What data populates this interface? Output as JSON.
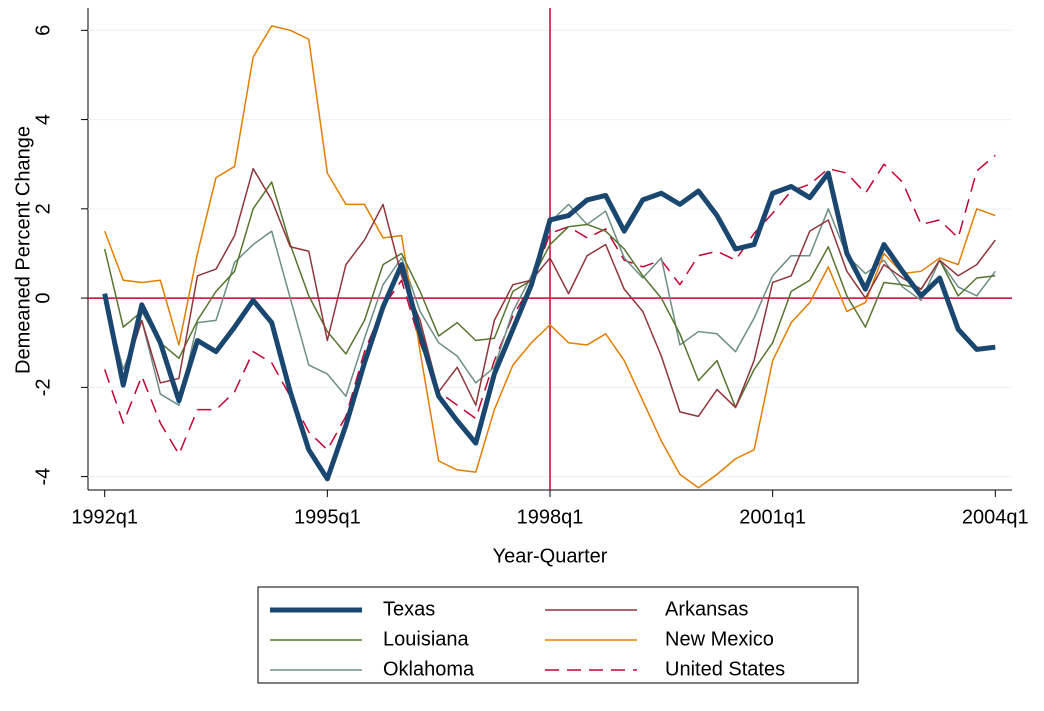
{
  "chart_data": {
    "type": "line",
    "x_label": "Year-Quarter",
    "y_label": "Demeaned Percent Change",
    "x": [
      128,
      129,
      130,
      131,
      132,
      133,
      134,
      135,
      136,
      137,
      138,
      139,
      140,
      141,
      142,
      143,
      144,
      145,
      146,
      147,
      148,
      149,
      150,
      151,
      152,
      153,
      154,
      155,
      156,
      157,
      158,
      159,
      160,
      161,
      162,
      163,
      164,
      165,
      166,
      167,
      168,
      169,
      170,
      171,
      172,
      173,
      174,
      175,
      176
    ],
    "xlim": [
      127.1,
      176.9
    ],
    "xticks": [
      {
        "value": 128,
        "label": "1992q1"
      },
      {
        "value": 140,
        "label": "1995q1"
      },
      {
        "value": 152,
        "label": "1998q1"
      },
      {
        "value": 164,
        "label": "2001q1"
      },
      {
        "value": 176,
        "label": "2004q1"
      }
    ],
    "ylim": [
      -4.3,
      6.5
    ],
    "yticks": [
      -4,
      -2,
      0,
      2,
      4,
      6
    ],
    "xline": 152,
    "yline": 0,
    "refline_color": "#c10534",
    "series": [
      {
        "name": "Texas",
        "color": "#1a476f",
        "line_width": 5,
        "dashed": false,
        "values": [
          0.1,
          -1.95,
          -0.15,
          -1.0,
          -2.3,
          -0.95,
          -1.2,
          -0.65,
          -0.05,
          -0.55,
          -2.1,
          -3.4,
          -4.05,
          -2.85,
          -1.45,
          -0.2,
          0.75,
          -0.8,
          -2.2,
          -2.75,
          -3.25,
          -1.7,
          -0.7,
          0.3,
          1.75,
          1.85,
          2.2,
          2.3,
          1.5,
          2.2,
          2.35,
          2.1,
          2.4,
          1.85,
          1.1,
          1.2,
          2.35,
          2.5,
          2.25,
          2.8,
          1.0,
          0.2,
          1.2,
          0.6,
          0.05,
          0.45,
          -0.7,
          -1.15,
          -1.1
        ]
      },
      {
        "name": "Arkansas",
        "color": "#90353b",
        "line_width": 1.5,
        "dashed": false,
        "values": [
          0,
          -1.8,
          -0.5,
          -1.9,
          -1.8,
          0.5,
          0.65,
          1.4,
          2.9,
          2.2,
          1.15,
          1.05,
          -0.95,
          0.75,
          1.3,
          2.1,
          0.5,
          -0.5,
          -2.1,
          -1.55,
          -2.4,
          -0.5,
          0.3,
          0.4,
          0.9,
          0.1,
          0.95,
          1.2,
          0.2,
          -0.3,
          -1.3,
          -2.55,
          -2.65,
          -2.05,
          -2.45,
          -1.4,
          0.35,
          0.5,
          1.5,
          1.75,
          0.6,
          0.0,
          0.75,
          0.45,
          0.2,
          0.85,
          0.5,
          0.75,
          1.3
        ]
      },
      {
        "name": "Louisiana",
        "color": "#55752f",
        "line_width": 1.5,
        "dashed": false,
        "values": [
          1.1,
          -0.65,
          -0.3,
          -1.0,
          -1.35,
          -0.5,
          0.15,
          0.6,
          2.0,
          2.6,
          1.2,
          0.05,
          -0.75,
          -1.25,
          -0.5,
          0.75,
          1.0,
          0.15,
          -0.85,
          -0.55,
          -0.95,
          -0.9,
          0.15,
          0.4,
          1.2,
          1.6,
          1.65,
          1.5,
          1.1,
          0.5,
          0.0,
          -0.8,
          -1.85,
          -1.4,
          -2.45,
          -1.6,
          -1.0,
          0.15,
          0.4,
          1.15,
          0.05,
          -0.65,
          0.35,
          0.3,
          0.2,
          0.85,
          0.05,
          0.45,
          0.5
        ]
      },
      {
        "name": "New Mexico",
        "color": "#e37e00",
        "line_width": 1.5,
        "dashed": false,
        "values": [
          1.5,
          0.4,
          0.35,
          0.4,
          -1.05,
          1.0,
          2.7,
          2.95,
          5.4,
          6.1,
          6.0,
          5.8,
          2.8,
          2.1,
          2.1,
          1.35,
          1.4,
          -1.2,
          -3.65,
          -3.85,
          -3.9,
          -2.5,
          -1.5,
          -1.0,
          -0.6,
          -1.0,
          -1.05,
          -0.8,
          -1.4,
          -2.3,
          -3.2,
          -3.95,
          -4.25,
          -3.95,
          -3.6,
          -3.4,
          -1.4,
          -0.55,
          -0.1,
          0.7,
          -0.3,
          -0.1,
          1.0,
          0.55,
          0.6,
          0.9,
          0.75,
          2.0,
          1.85
        ]
      },
      {
        "name": "Oklahoma",
        "color": "#6e8e84",
        "line_width": 1.5,
        "dashed": false,
        "values": [
          0.0,
          -1.6,
          -0.5,
          -2.15,
          -2.4,
          -0.55,
          -0.5,
          0.8,
          1.2,
          1.5,
          0.0,
          -1.5,
          -1.7,
          -2.2,
          -0.9,
          0.3,
          0.9,
          -0.3,
          -1.0,
          -1.3,
          -1.9,
          -1.55,
          -0.3,
          0.5,
          1.7,
          2.1,
          1.65,
          1.95,
          0.9,
          0.45,
          0.9,
          -1.05,
          -0.75,
          -0.8,
          -1.2,
          -0.45,
          0.5,
          0.95,
          0.95,
          2.0,
          0.95,
          0.55,
          0.85,
          0.25,
          -0.05,
          0.85,
          0.25,
          0.05,
          0.6
        ]
      },
      {
        "name": "United States",
        "color": "#c10534",
        "line_width": 1.5,
        "dashed": true,
        "values": [
          -1.6,
          -2.8,
          -1.75,
          -2.8,
          -3.5,
          -2.5,
          -2.5,
          -2.1,
          -1.2,
          -1.45,
          -2.2,
          -3.0,
          -3.4,
          -2.65,
          -1.2,
          -0.2,
          0.4,
          -1.0,
          -2.1,
          -2.4,
          -2.7,
          -1.4,
          -0.4,
          0.3,
          1.45,
          1.6,
          1.35,
          1.55,
          0.85,
          0.7,
          0.85,
          0.3,
          0.95,
          1.05,
          0.85,
          1.45,
          1.9,
          2.4,
          2.55,
          2.9,
          2.8,
          2.35,
          3.0,
          2.6,
          1.65,
          1.75,
          1.35,
          2.85,
          3.2
        ]
      }
    ]
  }
}
